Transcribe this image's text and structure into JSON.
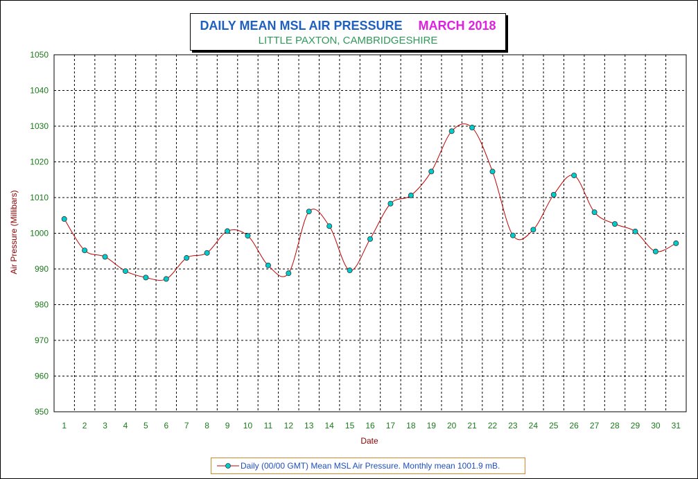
{
  "colors": {
    "title_main": "#1f5fbf",
    "title_period": "#e020e0",
    "subtitle": "#2e9a5a",
    "tick_labels": "#1a7a1a",
    "axis_labels": "#8b0000",
    "line": "#c00000",
    "marker_fill": "#00cccc",
    "legend_text": "#1f4fbf",
    "legend_border": "#d08a2a"
  },
  "chart_data": {
    "type": "line",
    "title": "DAILY MEAN MSL AIR PRESSURE",
    "title_period": "MARCH 2018",
    "subtitle": "LITTLE PAXTON, CAMBRIDGESHIRE",
    "xlabel": "Date",
    "ylabel": "Air Pressure (Millibars)",
    "ylim": [
      950,
      1050
    ],
    "y_ticks": [
      "950",
      "960",
      "970",
      "980",
      "990",
      "1000",
      "1010",
      "1020",
      "1030",
      "1040",
      "1050"
    ],
    "categories": [
      "1",
      "2",
      "3",
      "4",
      "5",
      "6",
      "7",
      "8",
      "9",
      "10",
      "11",
      "12",
      "13",
      "14",
      "15",
      "16",
      "17",
      "18",
      "19",
      "20",
      "21",
      "22",
      "23",
      "24",
      "25",
      "26",
      "27",
      "28",
      "29",
      "30",
      "31"
    ],
    "grid": true,
    "legend_position": "bottom",
    "series": [
      {
        "name": "Daily (00/00 GMT) Mean MSL Air Pressure. Monthly mean 1001.9 mB.",
        "values": [
          1004.0,
          995.2,
          993.4,
          989.4,
          987.6,
          987.2,
          993.1,
          994.5,
          1000.6,
          999.3,
          991.0,
          988.8,
          1006.1,
          1002.0,
          989.6,
          998.4,
          1008.3,
          1010.6,
          1017.3,
          1028.6,
          1029.6,
          1017.3,
          999.4,
          1001.0,
          1010.8,
          1016.2,
          1005.9,
          1002.6,
          1000.5,
          994.9,
          997.2
        ]
      }
    ]
  }
}
